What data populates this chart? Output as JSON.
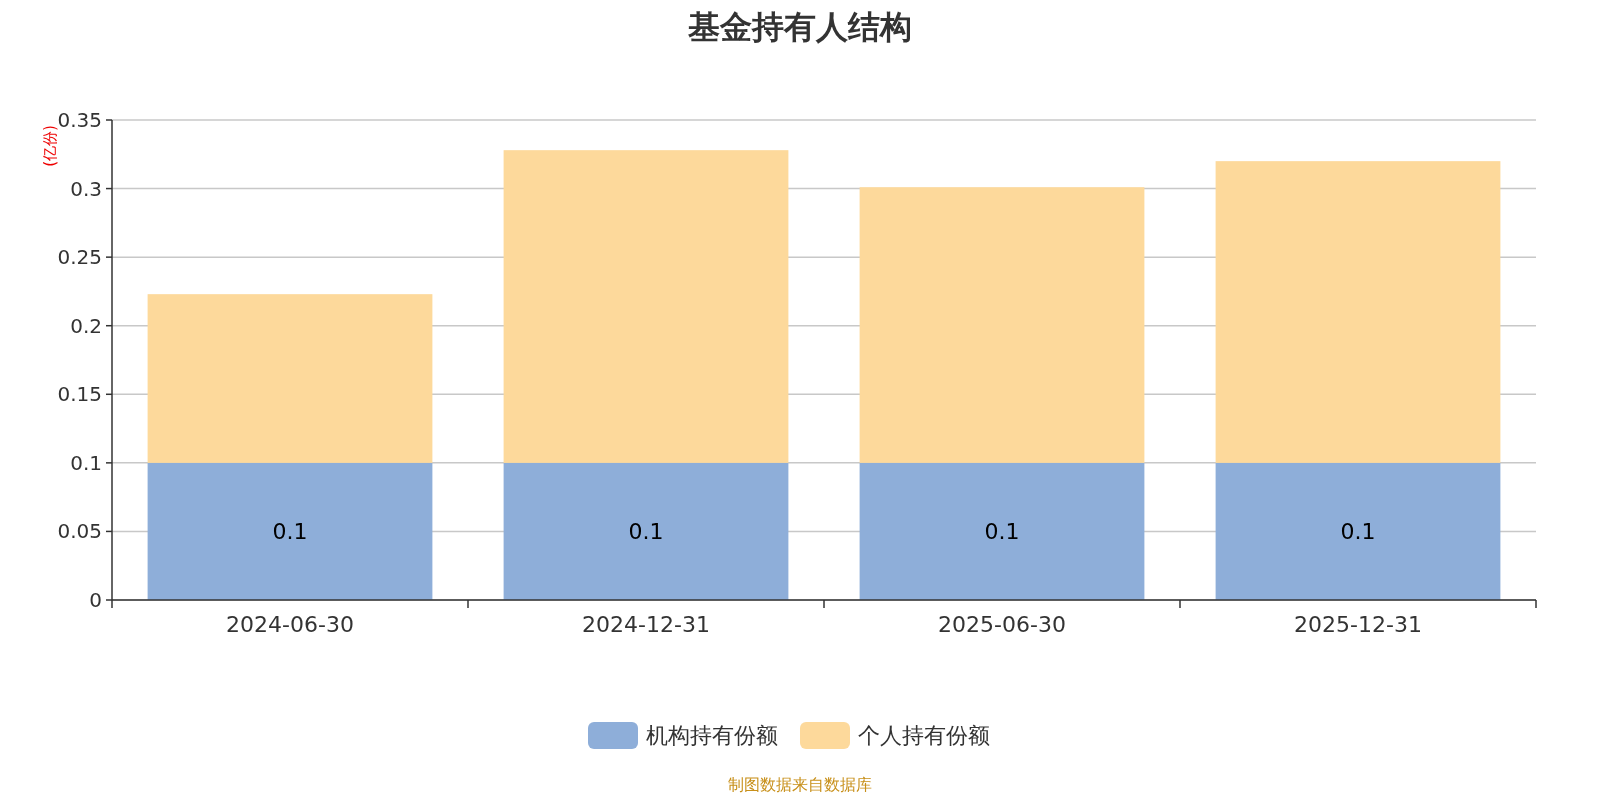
{
  "chart_data": {
    "type": "bar",
    "title": "基金持有人结构",
    "ylabel": "(亿份)",
    "categories": [
      "2024-06-30",
      "2024-12-31",
      "2025-06-30",
      "2025-12-31"
    ],
    "series": [
      {
        "name": "机构持有份额",
        "color": "#8eaed9",
        "values": [
          0.1,
          0.1,
          0.1,
          0.1
        ],
        "value_labels": [
          "0.1",
          "0.1",
          "0.1",
          "0.1"
        ]
      },
      {
        "name": "个人持有份额",
        "color": "#fdd99b",
        "values": [
          0.123,
          0.228,
          0.201,
          0.22
        ]
      }
    ],
    "stacked": true,
    "ylim": [
      0,
      0.35
    ],
    "yticks": [
      0,
      0.05,
      0.1,
      0.15,
      0.2,
      0.25,
      0.3,
      0.35
    ],
    "grid": "y",
    "legend": "bottom",
    "annotations": [
      "制图数据来自数据库"
    ]
  }
}
